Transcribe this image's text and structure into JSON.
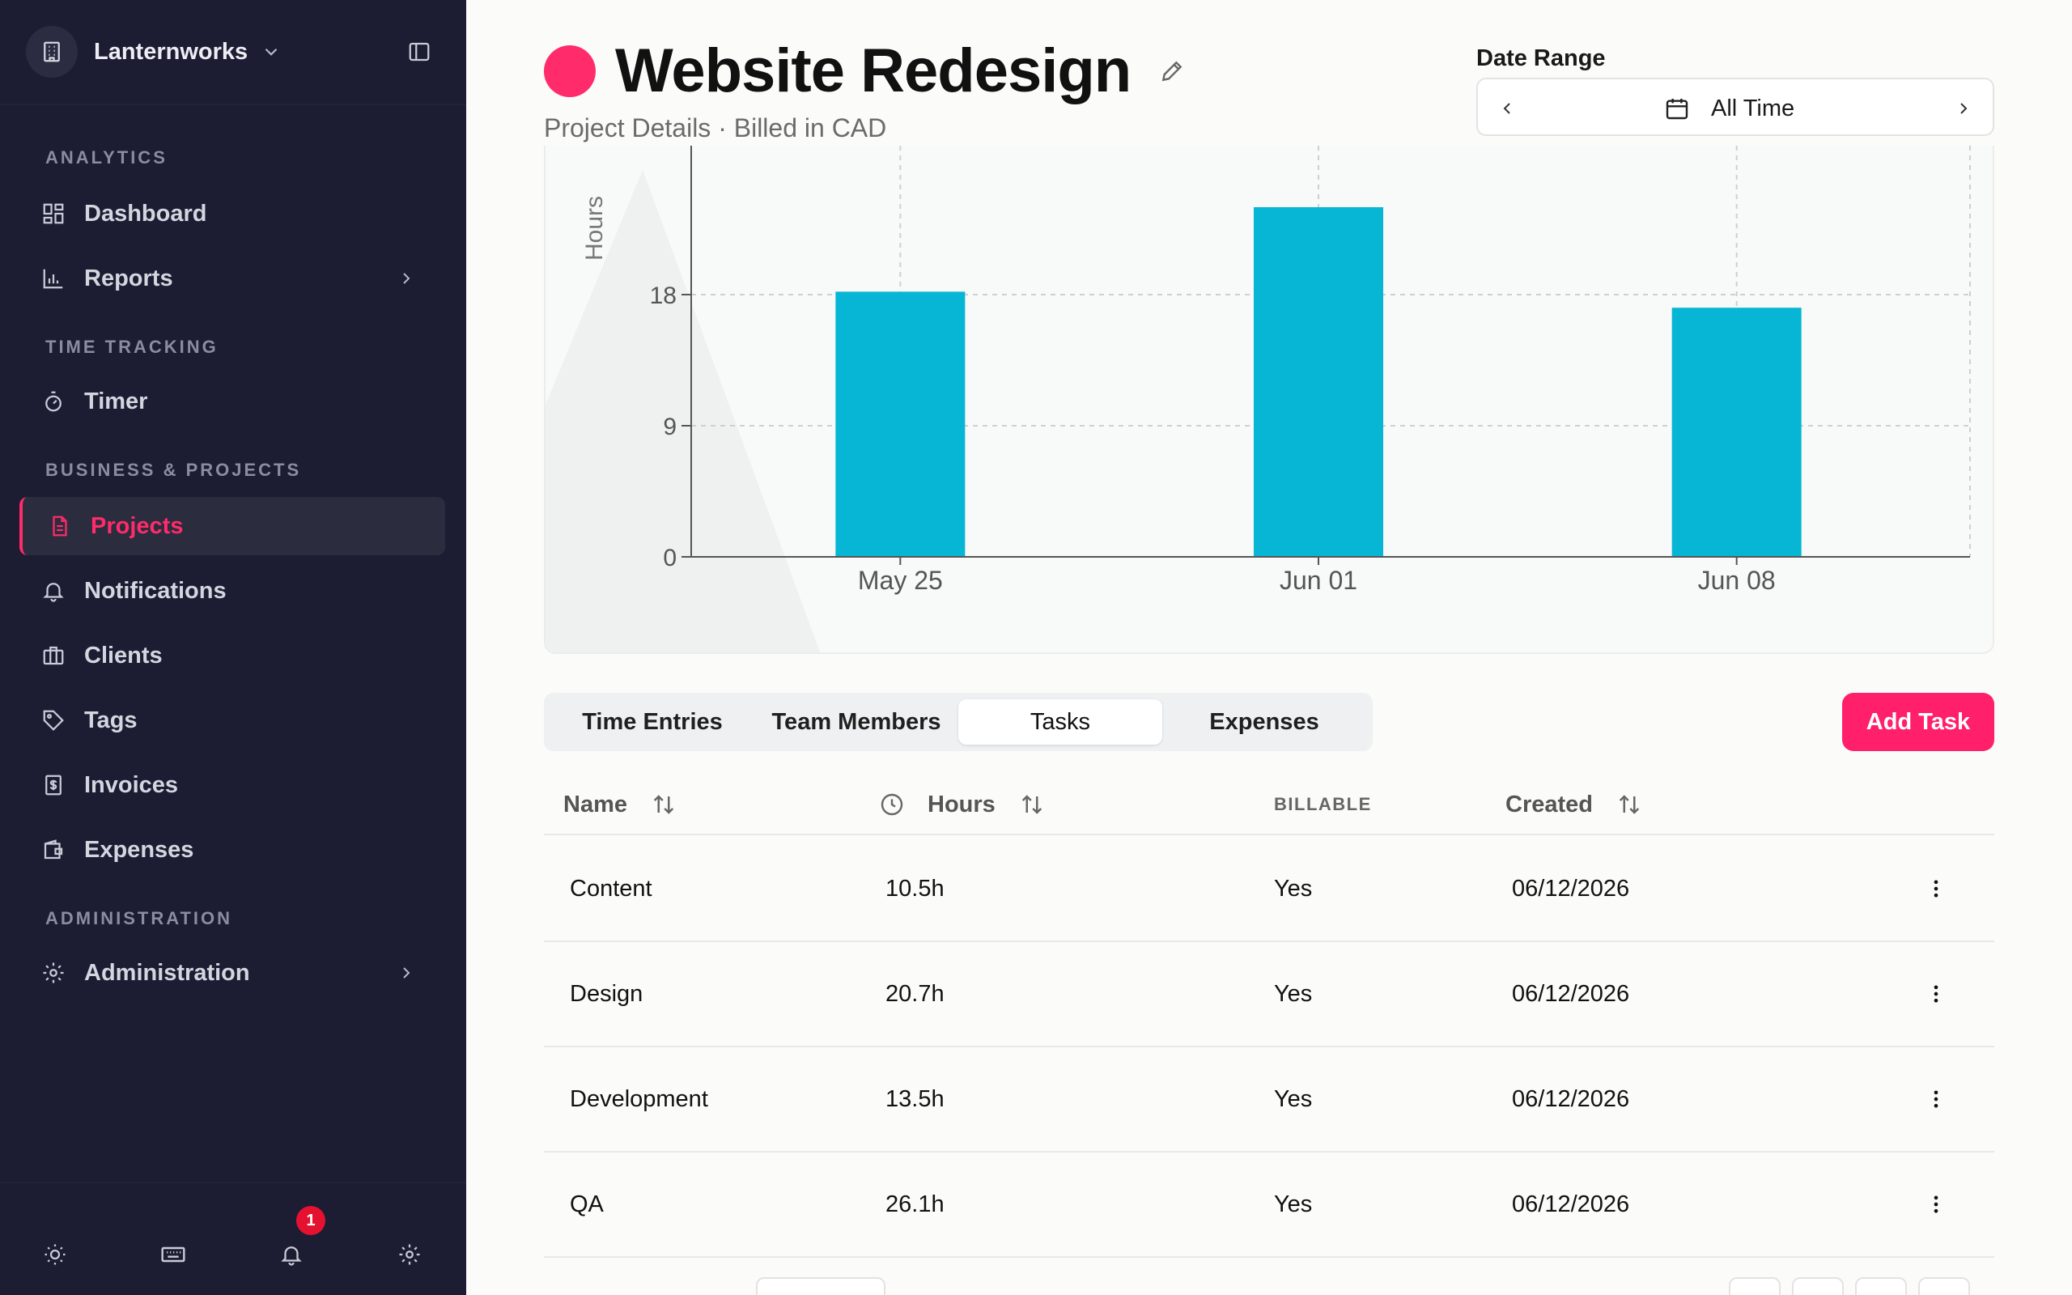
{
  "workspace": {
    "name": "Lanternworks"
  },
  "sidebar": {
    "sections": [
      {
        "title": "ANALYTICS",
        "items": [
          {
            "label": "Dashboard",
            "icon": "dashboard-icon"
          },
          {
            "label": "Reports",
            "icon": "bar-chart-icon",
            "has_chevron": true
          }
        ]
      },
      {
        "title": "TIME TRACKING",
        "items": [
          {
            "label": "Timer",
            "icon": "stopwatch-icon"
          }
        ]
      },
      {
        "title": "BUSINESS & PROJECTS",
        "items": [
          {
            "label": "Projects",
            "icon": "document-icon",
            "active": true
          },
          {
            "label": "Notifications",
            "icon": "bell-icon"
          },
          {
            "label": "Clients",
            "icon": "briefcase-icon"
          },
          {
            "label": "Tags",
            "icon": "tag-icon"
          },
          {
            "label": "Invoices",
            "icon": "invoice-icon"
          },
          {
            "label": "Expenses",
            "icon": "wallet-icon"
          }
        ]
      },
      {
        "title": "ADMINISTRATION",
        "items": [
          {
            "label": "Administration",
            "icon": "gear-icon",
            "has_chevron": true
          }
        ]
      }
    ],
    "footer": {
      "notification_count": "1"
    }
  },
  "header": {
    "title": "Website Redesign",
    "subtitle": "Project Details · Billed in CAD",
    "color": "#ff2b6a"
  },
  "date_range": {
    "label": "Date Range",
    "value": "All Time"
  },
  "chart_data": {
    "type": "bar",
    "categories": [
      "May 25",
      "Jun 01",
      "Jun 08"
    ],
    "values": [
      18.2,
      24,
      17.1
    ],
    "ylabel": "Hours",
    "yticks": [
      0,
      9,
      18
    ],
    "ylim": [
      0,
      24
    ],
    "color": "#06b6d4",
    "grid": true
  },
  "tabs": [
    {
      "label": "Time Entries"
    },
    {
      "label": "Team Members"
    },
    {
      "label": "Tasks",
      "active": true
    },
    {
      "label": "Expenses"
    }
  ],
  "add_button": "Add Task",
  "table": {
    "columns": [
      "Name",
      "Hours",
      "BILLABLE",
      "Created"
    ],
    "rows": [
      {
        "name": "Content",
        "hours": "10.5h",
        "billable": "Yes",
        "created": "06/12/2026"
      },
      {
        "name": "Design",
        "hours": "20.7h",
        "billable": "Yes",
        "created": "06/12/2026"
      },
      {
        "name": "Development",
        "hours": "13.5h",
        "billable": "Yes",
        "created": "06/12/2026"
      },
      {
        "name": "QA",
        "hours": "26.1h",
        "billable": "Yes",
        "created": "06/12/2026"
      }
    ]
  },
  "accent_color": "#ff1f6b"
}
